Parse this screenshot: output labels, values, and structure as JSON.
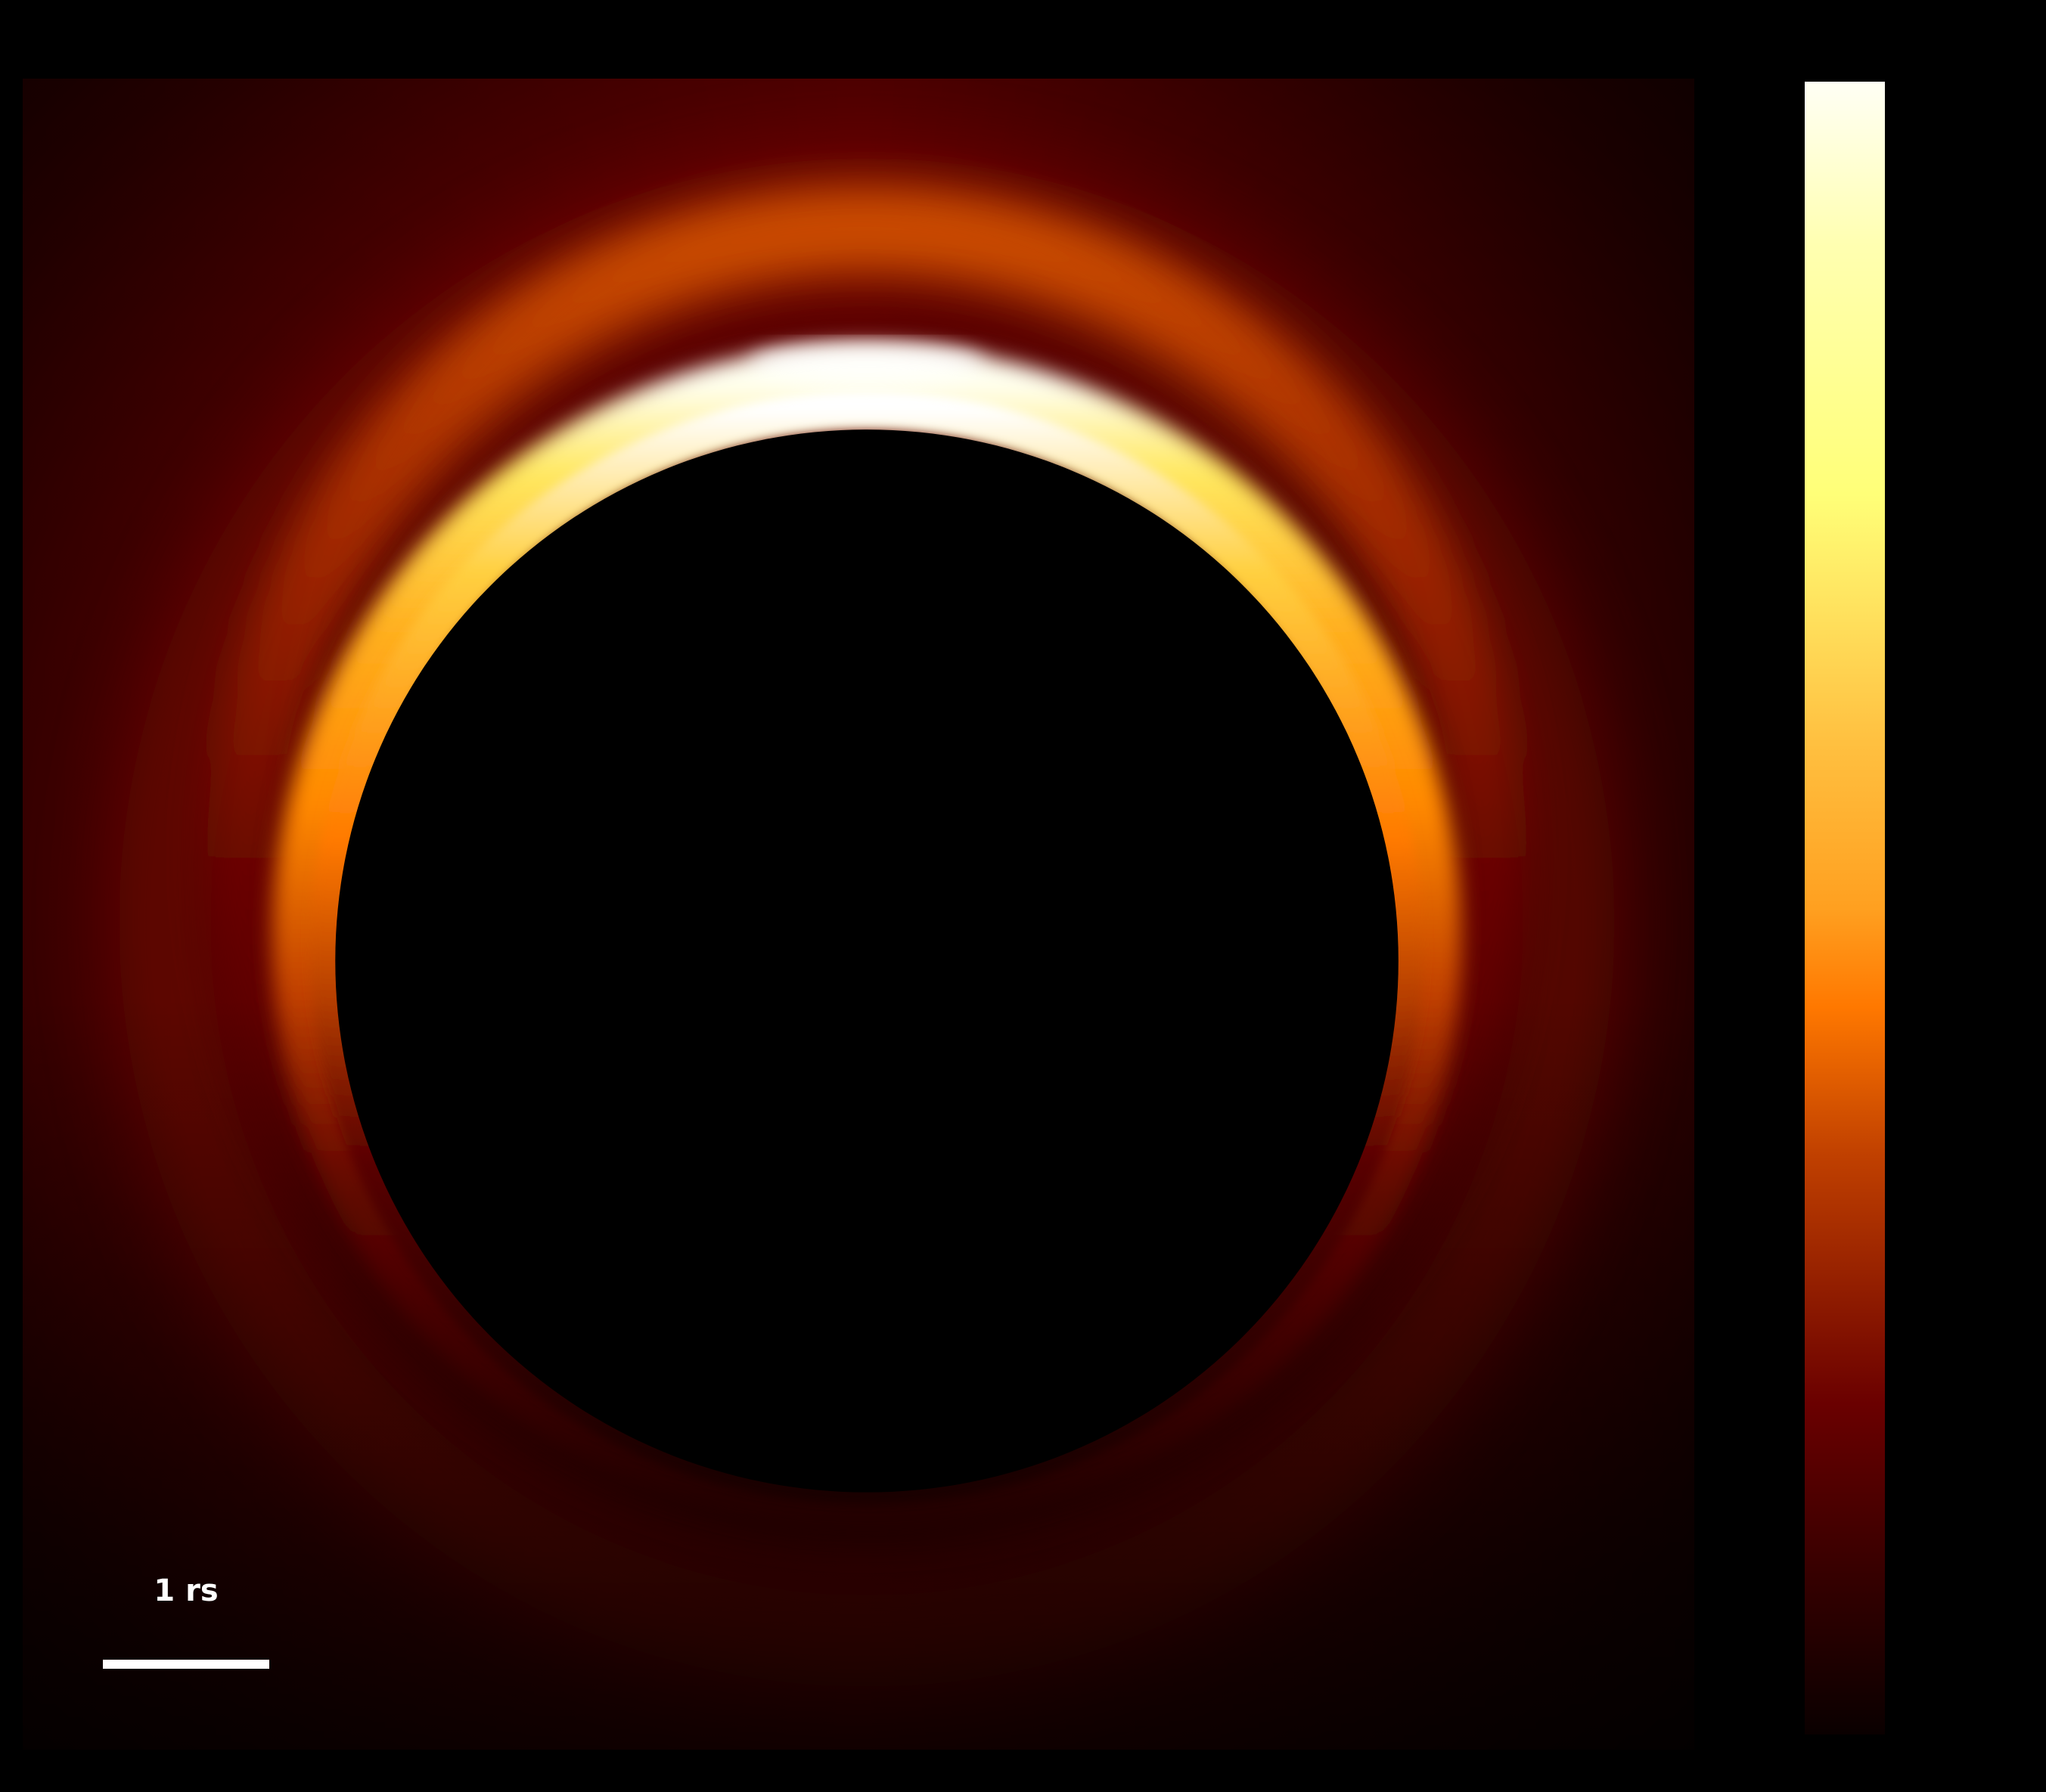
{
  "image": {
    "subject": "ring-of-emission-around-dark-disk",
    "colormap_stops": [
      "#fffff5",
      "#ffff7a",
      "#ffa020",
      "#ff7800",
      "#b83000",
      "#6a0000",
      "#0d0000"
    ]
  },
  "scale_bar": {
    "label": "1 rs"
  }
}
